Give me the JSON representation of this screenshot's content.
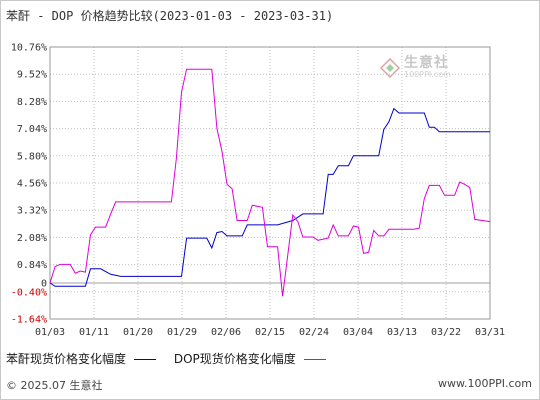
{
  "header": {
    "title": "苯酐 - DOP 价格趋势比较(2023-01-03 - 2023-03-31)"
  },
  "watermark": {
    "text": "生意社",
    "sub": "100PPI.com"
  },
  "footer": {
    "left": "© 2025.07 生意社",
    "right": "www.100PPI.com"
  },
  "colors": {
    "series_1": "#0000cc",
    "series_2": "#dd00dd",
    "grid": "#c0c0c0",
    "zero_line": "#a0a0a0",
    "negative_tick": "#cc0000"
  },
  "chart_data": {
    "type": "line",
    "title": "苯酐 - DOP 价格趋势比较(2023-01-03 - 2023-03-31)",
    "x_ticks": [
      "01/03",
      "01/11",
      "01/20",
      "01/29",
      "02/06",
      "02/15",
      "02/24",
      "03/04",
      "03/13",
      "03/22",
      "03/31"
    ],
    "y_ticks": [
      "10.76%",
      "9.52%",
      "8.28%",
      "7.04%",
      "5.80%",
      "4.56%",
      "3.32%",
      "2.08%",
      "0.84%",
      "0",
      "-0.40%",
      "-1.64%"
    ],
    "ylim": [
      -1.64,
      10.76
    ],
    "xlim": [
      "2023-01-03",
      "2023-03-31"
    ],
    "grid": true,
    "legend_position": "bottom",
    "series": [
      {
        "name": "苯酐现货价格变化幅度",
        "color": "#0000cc",
        "points": [
          [
            "2023-01-03",
            0.0
          ],
          [
            "2023-01-04",
            -0.15
          ],
          [
            "2023-01-05",
            -0.15
          ],
          [
            "2023-01-09",
            -0.15
          ],
          [
            "2023-01-10",
            -0.15
          ],
          [
            "2023-01-11",
            0.65
          ],
          [
            "2023-01-13",
            0.65
          ],
          [
            "2023-01-15",
            0.4
          ],
          [
            "2023-01-17",
            0.3
          ],
          [
            "2023-01-20",
            0.3
          ],
          [
            "2023-01-25",
            0.3
          ],
          [
            "2023-01-29",
            0.3
          ],
          [
            "2023-01-30",
            2.05
          ],
          [
            "2023-02-03",
            2.05
          ],
          [
            "2023-02-04",
            1.6
          ],
          [
            "2023-02-05",
            2.3
          ],
          [
            "2023-02-06",
            2.35
          ],
          [
            "2023-02-07",
            2.15
          ],
          [
            "2023-02-10",
            2.15
          ],
          [
            "2023-02-11",
            2.65
          ],
          [
            "2023-02-14",
            2.65
          ],
          [
            "2023-02-17",
            2.65
          ],
          [
            "2023-02-20",
            2.85
          ],
          [
            "2023-02-22",
            3.15
          ],
          [
            "2023-02-26",
            3.15
          ],
          [
            "2023-02-27",
            4.95
          ],
          [
            "2023-02-28",
            4.95
          ],
          [
            "2023-03-01",
            5.35
          ],
          [
            "2023-03-03",
            5.35
          ],
          [
            "2023-03-04",
            5.8
          ],
          [
            "2023-03-09",
            5.8
          ],
          [
            "2023-03-10",
            7.0
          ],
          [
            "2023-03-11",
            7.35
          ],
          [
            "2023-03-12",
            7.95
          ],
          [
            "2023-03-13",
            7.75
          ],
          [
            "2023-03-16",
            7.75
          ],
          [
            "2023-03-18",
            7.75
          ],
          [
            "2023-03-19",
            7.1
          ],
          [
            "2023-03-20",
            7.1
          ],
          [
            "2023-03-21",
            6.9
          ],
          [
            "2023-03-31",
            6.9
          ]
        ]
      },
      {
        "name": "DOP现货价格变化幅度",
        "color": "#dd00dd",
        "points": [
          [
            "2023-01-03",
            0.0
          ],
          [
            "2023-01-04",
            0.75
          ],
          [
            "2023-01-05",
            0.85
          ],
          [
            "2023-01-07",
            0.85
          ],
          [
            "2023-01-08",
            0.45
          ],
          [
            "2023-01-09",
            0.55
          ],
          [
            "2023-01-10",
            0.5
          ],
          [
            "2023-01-11",
            2.2
          ],
          [
            "2023-01-12",
            2.55
          ],
          [
            "2023-01-14",
            2.55
          ],
          [
            "2023-01-15",
            3.15
          ],
          [
            "2023-01-16",
            3.7
          ],
          [
            "2023-01-20",
            3.7
          ],
          [
            "2023-01-25",
            3.7
          ],
          [
            "2023-01-27",
            3.7
          ],
          [
            "2023-01-28",
            5.7
          ],
          [
            "2023-01-29",
            8.7
          ],
          [
            "2023-01-30",
            9.75
          ],
          [
            "2023-02-04",
            9.75
          ],
          [
            "2023-02-05",
            7.05
          ],
          [
            "2023-02-06",
            6.0
          ],
          [
            "2023-02-07",
            4.5
          ],
          [
            "2023-02-08",
            4.3
          ],
          [
            "2023-02-09",
            2.85
          ],
          [
            "2023-02-11",
            2.85
          ],
          [
            "2023-02-12",
            3.55
          ],
          [
            "2023-02-14",
            3.45
          ],
          [
            "2023-02-15",
            1.65
          ],
          [
            "2023-02-16",
            1.65
          ],
          [
            "2023-02-17",
            1.65
          ],
          [
            "2023-02-18",
            -0.6
          ],
          [
            "2023-02-20",
            3.1
          ],
          [
            "2023-02-21",
            2.8
          ],
          [
            "2023-02-22",
            2.1
          ],
          [
            "2023-02-24",
            2.1
          ],
          [
            "2023-02-25",
            1.95
          ],
          [
            "2023-02-27",
            2.05
          ],
          [
            "2023-02-28",
            2.65
          ],
          [
            "2023-03-01",
            2.15
          ],
          [
            "2023-03-03",
            2.15
          ],
          [
            "2023-03-04",
            2.6
          ],
          [
            "2023-03-05",
            2.55
          ],
          [
            "2023-03-06",
            1.35
          ],
          [
            "2023-03-07",
            1.4
          ],
          [
            "2023-03-08",
            2.4
          ],
          [
            "2023-03-09",
            2.15
          ],
          [
            "2023-03-10",
            2.15
          ],
          [
            "2023-03-11",
            2.45
          ],
          [
            "2023-03-12",
            2.45
          ],
          [
            "2023-03-13",
            2.45
          ],
          [
            "2023-03-16",
            2.45
          ],
          [
            "2023-03-17",
            2.5
          ],
          [
            "2023-03-18",
            3.85
          ],
          [
            "2023-03-19",
            4.45
          ],
          [
            "2023-03-20",
            4.45
          ],
          [
            "2023-03-21",
            4.45
          ],
          [
            "2023-03-22",
            4.0
          ],
          [
            "2023-03-24",
            4.0
          ],
          [
            "2023-03-25",
            4.6
          ],
          [
            "2023-03-26",
            4.5
          ],
          [
            "2023-03-27",
            4.35
          ],
          [
            "2023-03-28",
            2.9
          ],
          [
            "2023-03-31",
            2.8
          ]
        ]
      }
    ]
  }
}
